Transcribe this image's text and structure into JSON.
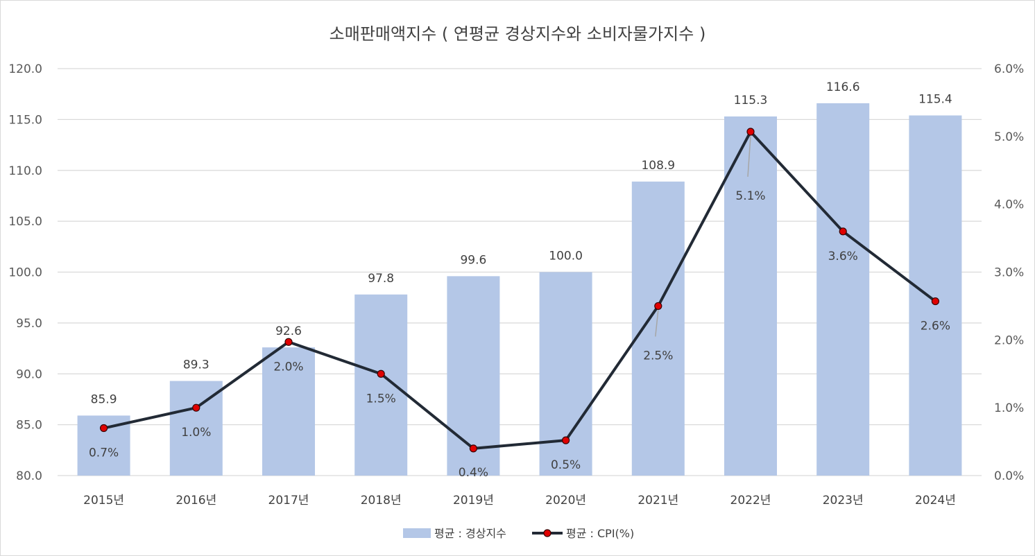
{
  "chart_data": {
    "type": "bar",
    "title": "소매판매액지수 ( 연평균 경상지수와 소비자물가지수 )",
    "categories": [
      "2015년",
      "2016년",
      "2017년",
      "2018년",
      "2019년",
      "2020년",
      "2021년",
      "2022년",
      "2023년",
      "2024년"
    ],
    "series": [
      {
        "name": "평균 : 경상지수",
        "type": "bar",
        "axis": "left",
        "color": "#b4c7e7",
        "values": [
          85.9,
          89.3,
          92.6,
          97.8,
          99.6,
          100.0,
          108.9,
          115.3,
          116.6,
          115.4
        ],
        "labels": [
          "85.9",
          "89.3",
          "92.6",
          "97.8",
          "99.6",
          "100.0",
          "108.9",
          "115.3",
          "116.6",
          "115.4"
        ]
      },
      {
        "name": "평균 : CPI(%)",
        "type": "line",
        "axis": "right",
        "color": "#222a35",
        "marker_color": "#e00000",
        "values": [
          0.7,
          1.0,
          1.97,
          1.5,
          0.4,
          0.52,
          2.5,
          5.07,
          3.6,
          2.57
        ],
        "labels": [
          "0.7%",
          "1.0%",
          "2.0%",
          "1.5%",
          "0.4%",
          "0.5%",
          "2.5%",
          "5.1%",
          "3.6%",
          "2.6%"
        ]
      }
    ],
    "y_left": {
      "ylim": [
        80,
        120
      ],
      "ticks": [
        80,
        85,
        90,
        95,
        100,
        105,
        110,
        115,
        120
      ],
      "tick_labels": [
        "80.0",
        "85.0",
        "90.0",
        "95.0",
        "100.0",
        "105.0",
        "110.0",
        "115.0",
        "120.0"
      ]
    },
    "y_right": {
      "ylim": [
        0,
        6
      ],
      "ticks": [
        0,
        1,
        2,
        3,
        4,
        5,
        6
      ],
      "tick_labels": [
        "0.0%",
        "1.0%",
        "2.0%",
        "3.0%",
        "4.0%",
        "5.0%",
        "6.0%"
      ]
    },
    "grid": true,
    "legend": "bottom"
  }
}
